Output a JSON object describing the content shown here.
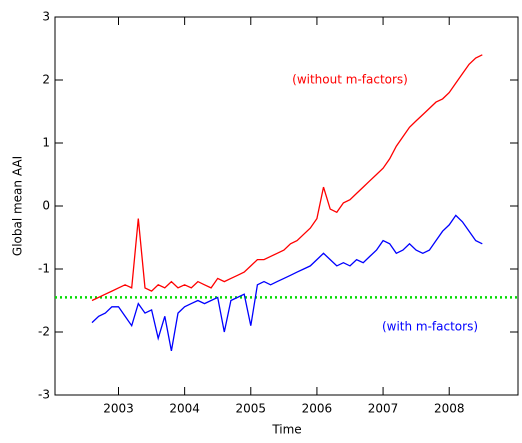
{
  "chart_data": {
    "type": "line",
    "x_label": "Time",
    "y_label": "Global mean AAI",
    "x": [
      2002.6,
      2002.7,
      2002.8,
      2002.9,
      2003.0,
      2003.1,
      2003.2,
      2003.3,
      2003.4,
      2003.5,
      2003.6,
      2003.7,
      2003.8,
      2003.9,
      2004.0,
      2004.1,
      2004.2,
      2004.3,
      2004.4,
      2004.5,
      2004.6,
      2004.7,
      2004.8,
      2004.9,
      2005.0,
      2005.1,
      2005.2,
      2005.3,
      2005.4,
      2005.5,
      2005.6,
      2005.7,
      2005.8,
      2005.9,
      2006.0,
      2006.1,
      2006.2,
      2006.3,
      2006.4,
      2006.5,
      2006.6,
      2006.7,
      2006.8,
      2006.9,
      2007.0,
      2007.1,
      2007.2,
      2007.3,
      2007.4,
      2007.5,
      2007.6,
      2007.7,
      2007.8,
      2007.9,
      2008.0,
      2008.1,
      2008.2,
      2008.3,
      2008.4,
      2008.5
    ],
    "series": [
      {
        "name": "(without m-factors)",
        "color": "#ff0000",
        "values": [
          -1.5,
          -1.45,
          -1.4,
          -1.35,
          -1.3,
          -1.25,
          -1.3,
          -0.2,
          -1.3,
          -1.35,
          -1.25,
          -1.3,
          -1.2,
          -1.3,
          -1.25,
          -1.3,
          -1.2,
          -1.25,
          -1.3,
          -1.15,
          -1.2,
          -1.15,
          -1.1,
          -1.05,
          -0.95,
          -0.85,
          -0.85,
          -0.8,
          -0.75,
          -0.7,
          -0.6,
          -0.55,
          -0.45,
          -0.35,
          -0.2,
          0.3,
          -0.05,
          -0.1,
          0.05,
          0.1,
          0.2,
          0.3,
          0.4,
          0.5,
          0.6,
          0.75,
          0.95,
          1.1,
          1.25,
          1.35,
          1.45,
          1.55,
          1.65,
          1.7,
          1.8,
          1.95,
          2.1,
          2.25,
          2.35,
          2.4
        ]
      },
      {
        "name": "(with m-factors)",
        "color": "#0000ff",
        "values": [
          -1.85,
          -1.75,
          -1.7,
          -1.6,
          -1.6,
          -1.75,
          -1.9,
          -1.55,
          -1.7,
          -1.65,
          -2.1,
          -1.75,
          -2.3,
          -1.7,
          -1.6,
          -1.55,
          -1.5,
          -1.55,
          -1.5,
          -1.45,
          -2.0,
          -1.5,
          -1.45,
          -1.4,
          -1.9,
          -1.25,
          -1.2,
          -1.25,
          -1.2,
          -1.15,
          -1.1,
          -1.05,
          -1.0,
          -0.95,
          -0.85,
          -0.75,
          -0.85,
          -0.95,
          -0.9,
          -0.95,
          -0.85,
          -0.9,
          -0.8,
          -0.7,
          -0.55,
          -0.6,
          -0.75,
          -0.7,
          -0.6,
          -0.7,
          -0.75,
          -0.7,
          -0.55,
          -0.4,
          -0.3,
          -0.15,
          -0.25,
          -0.4,
          -0.55,
          -0.6
        ]
      }
    ],
    "reference_line": {
      "value": -1.45,
      "color": "#00dd00"
    },
    "xlim": [
      2002.04,
      2009.04
    ],
    "xticks": [
      2003,
      2004,
      2005,
      2006,
      2007,
      2008
    ],
    "ylim": [
      -3,
      3
    ],
    "yticks": [
      -3,
      -2,
      -1,
      0,
      1,
      2,
      3
    ]
  }
}
